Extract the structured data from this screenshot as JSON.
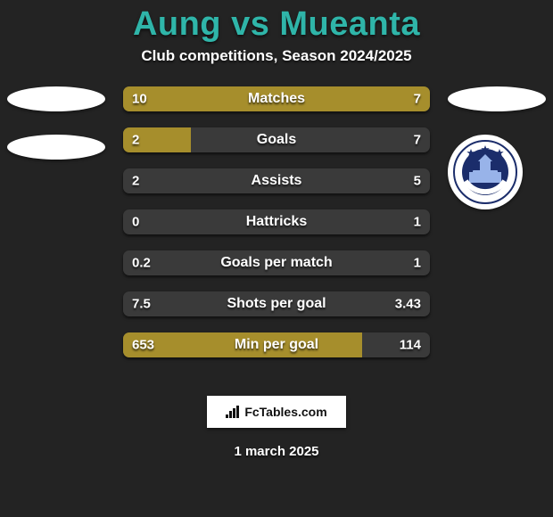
{
  "title": "Aung vs Mueanta",
  "subtitle": "Club competitions, Season 2024/2025",
  "date": "1 march 2025",
  "footer_brand": "FcTables.com",
  "colors": {
    "accent_title": "#2fb5a9",
    "bar_left": "#a68e2c",
    "bar_right": "#3a3a3a",
    "row_bg": "#3a3a3a",
    "background": "#232323",
    "text": "#ffffff"
  },
  "comparison": {
    "type": "bar",
    "rows": [
      {
        "label": "Matches",
        "leftValue": "10",
        "rightValue": "7",
        "leftPct": 100,
        "rightPct": 0,
        "invertRight": false
      },
      {
        "label": "Goals",
        "leftValue": "2",
        "rightValue": "7",
        "leftPct": 22,
        "rightPct": 0,
        "invertRight": false
      },
      {
        "label": "Assists",
        "leftValue": "2",
        "rightValue": "5",
        "leftPct": 0,
        "rightPct": 0,
        "invertRight": false
      },
      {
        "label": "Hattricks",
        "leftValue": "0",
        "rightValue": "1",
        "leftPct": 0,
        "rightPct": 0,
        "invertRight": false
      },
      {
        "label": "Goals per match",
        "leftValue": "0.2",
        "rightValue": "1",
        "leftPct": 0,
        "rightPct": 0,
        "invertRight": false
      },
      {
        "label": "Shots per goal",
        "leftValue": "7.5",
        "rightValue": "3.43",
        "leftPct": 0,
        "rightPct": 0,
        "invertRight": false
      },
      {
        "label": "Min per goal",
        "leftValue": "653",
        "rightValue": "114",
        "leftPct": 78,
        "rightPct": 0,
        "invertRight": false
      }
    ]
  },
  "badges": {
    "right_club": "BURIRAM UNITED",
    "right_club_colors": {
      "ring": "#1b2d6b",
      "inner": "#1b2d6b",
      "accent": "#ffffff"
    }
  }
}
